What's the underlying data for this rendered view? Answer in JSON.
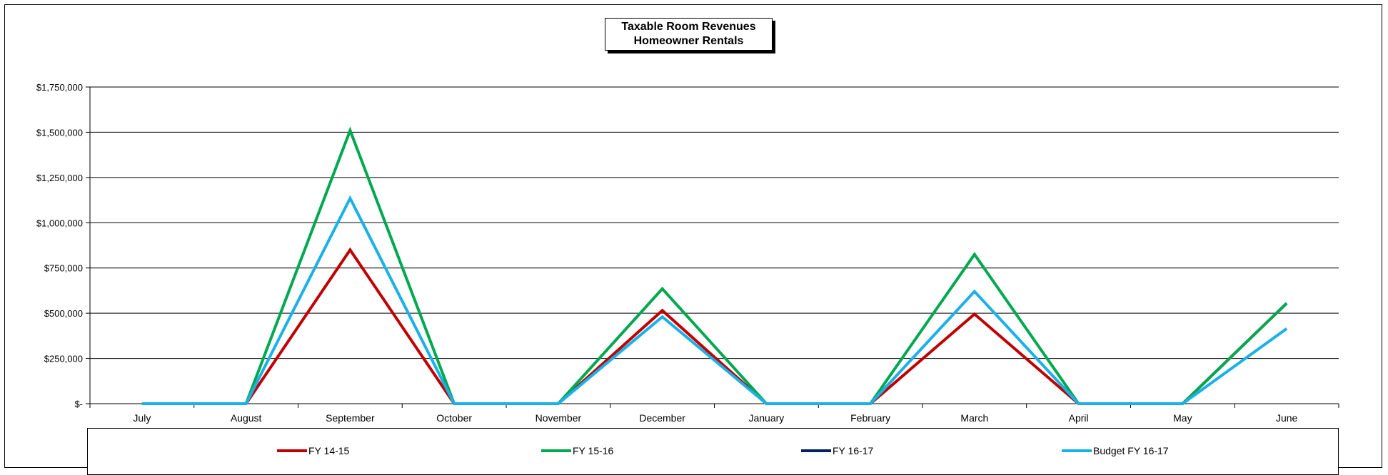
{
  "chart_data": {
    "type": "line",
    "title_line1": "Taxable Room Revenues",
    "title_line2": "Homeowner Rentals",
    "categories": [
      "July",
      "August",
      "September",
      "October",
      "November",
      "December",
      "January",
      "February",
      "March",
      "April",
      "May",
      "June"
    ],
    "ylim": [
      0,
      1750000
    ],
    "yticks": [
      0,
      250000,
      500000,
      750000,
      1000000,
      1250000,
      1500000,
      1750000
    ],
    "ytick_labels": [
      "$-",
      "$250,000",
      "$500,000",
      "$750,000",
      "$1,000,000",
      "$1,250,000",
      "$1,500,000",
      "$1,750,000"
    ],
    "grid": true,
    "legend_position": "bottom",
    "series": [
      {
        "name": "FY 14-15",
        "color": "#c00000",
        "values": [
          0,
          0,
          850000,
          0,
          0,
          515000,
          0,
          0,
          495000,
          0,
          0,
          555000
        ]
      },
      {
        "name": "FY 15-16",
        "color": "#00a84f",
        "values": [
          0,
          0,
          1510000,
          0,
          0,
          635000,
          0,
          0,
          825000,
          0,
          0,
          555000
        ]
      },
      {
        "name": "FY 16-17",
        "color": "#002060",
        "values": [
          null,
          null,
          null,
          null,
          null,
          null,
          null,
          null,
          null,
          null,
          null,
          null
        ]
      },
      {
        "name": "Budget FY 16-17",
        "color": "#1ab0e8",
        "values": [
          0,
          0,
          1135000,
          0,
          0,
          480000,
          0,
          0,
          620000,
          0,
          0,
          415000
        ]
      }
    ]
  }
}
